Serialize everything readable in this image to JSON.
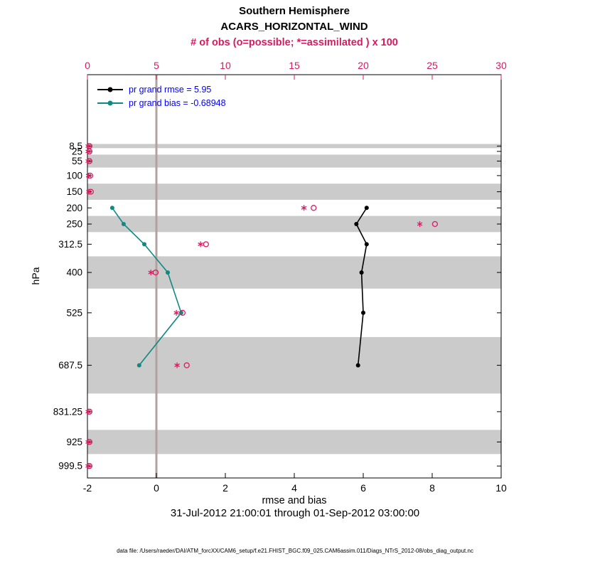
{
  "title": {
    "line1": "Southern Hemisphere",
    "line2": "ACARS_HORIZONTAL_WIND",
    "obs_line": "# of obs (o=possible; *=assimilated ) x 100"
  },
  "legend": [
    {
      "label": "pr grand rmse = 5.95",
      "color": "#000000"
    },
    {
      "label": "pr grand bias = -0.68948",
      "color": "#0e8a80"
    }
  ],
  "footer": {
    "timespan": "31-Jul-2012 21:00:01 through 01-Sep-2012 03:00:00",
    "datafile": "data file: /Users/raeder/DAI/ATM_forcXX/CAM6_setup/f.e21.FHIST_BGC.f09_025.CAM6assim.011/Diags_NTrS_2012-08/obs_diag_output.nc"
  },
  "colors": {
    "rmse": "#000000",
    "bias": "#0e8a80",
    "obs": "#d81b60",
    "band": "#cbcbcb",
    "zero_line": "#b3a1a1",
    "legend_text": "#0000ff",
    "axis": "#000000"
  },
  "chart_data": {
    "type": "line",
    "title": "Southern Hemisphere - ACARS_HORIZONTAL_WIND",
    "xlabel": "rmse and bias",
    "ylabel": "hPa",
    "grid": false,
    "legend_position": "upper-left-inside",
    "x_bottom": {
      "min": -2,
      "max": 10,
      "ticks": [
        -2,
        0,
        2,
        4,
        6,
        8,
        10
      ],
      "label": "rmse and bias"
    },
    "x_top": {
      "min": 0,
      "max": 30,
      "ticks": [
        0,
        5,
        10,
        15,
        20,
        25,
        30
      ],
      "label": "# of obs (o=possible; *=assimilated ) x 100"
    },
    "y_axis": {
      "units": "hPa",
      "direction": "pressure-increasing-downward",
      "ymin": -212.6,
      "ymax": 1036.5,
      "levels_hPa": [
        8.5,
        25,
        55,
        100,
        150,
        200,
        250,
        312.5,
        400,
        525,
        687.5,
        831.25,
        925,
        999.5
      ],
      "tick_labels": [
        "8.5",
        "25",
        "55",
        "100",
        "150",
        "200",
        "250",
        "312.5",
        "400",
        "525",
        "687.5",
        "831.25",
        "925",
        "999.5"
      ]
    },
    "gray_bands_hPa": [
      [
        2,
        15
      ],
      [
        35,
        75
      ],
      [
        125,
        175
      ],
      [
        225,
        275
      ],
      [
        350,
        450
      ],
      [
        600,
        775
      ],
      [
        887.5,
        962.5
      ]
    ],
    "zero_reference_x": 0,
    "series": [
      {
        "name": "rmse",
        "axis": "bottom",
        "grand_value": 5.95,
        "levels": [
          200,
          250,
          312.5,
          400,
          525,
          687.5
        ],
        "values": [
          6.1,
          5.8,
          6.1,
          5.95,
          6.0,
          5.85
        ]
      },
      {
        "name": "bias",
        "axis": "bottom",
        "grand_value": -0.68948,
        "levels": [
          200,
          250,
          312.5,
          400,
          525,
          687.5
        ],
        "values": [
          -1.28,
          -0.95,
          -0.35,
          0.33,
          0.72,
          -0.5
        ]
      }
    ],
    "obs_counts_x100": {
      "axis": "top",
      "levels": [
        8.5,
        25,
        55,
        100,
        150,
        200,
        250,
        312.5,
        400,
        525,
        687.5,
        831.25,
        925,
        999.5
      ],
      "assimilated": [
        0.05,
        0.05,
        0.05,
        0.08,
        0.1,
        15.7,
        24.1,
        8.2,
        4.6,
        6.45,
        6.5,
        0.05,
        0.05,
        0.05
      ],
      "possible": [
        0.15,
        0.15,
        0.15,
        0.2,
        0.25,
        16.4,
        25.2,
        8.6,
        4.95,
        6.9,
        7.2,
        0.15,
        0.15,
        0.15
      ]
    }
  }
}
